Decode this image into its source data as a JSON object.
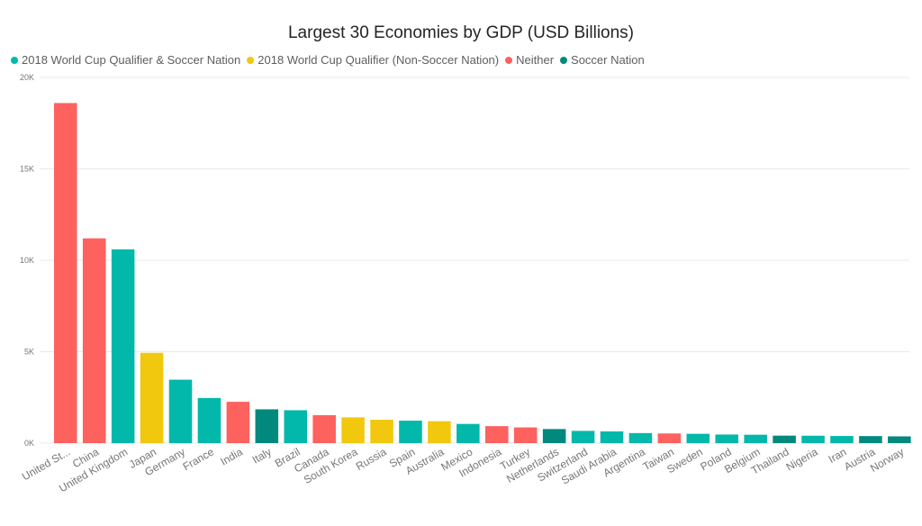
{
  "chart_data": {
    "type": "bar",
    "title": "Largest 30 Economies by GDP (USD Billions)",
    "xlabel": "",
    "ylabel": "",
    "ylim": [
      0,
      20000
    ],
    "yticks": [
      {
        "value": 0,
        "label": "0K"
      },
      {
        "value": 5000,
        "label": "5K"
      },
      {
        "value": 10000,
        "label": "10K"
      },
      {
        "value": 15000,
        "label": "15K"
      },
      {
        "value": 20000,
        "label": "20K"
      }
    ],
    "grid": true,
    "legend_position": "top-left",
    "legend": [
      {
        "name": "2018 World Cup Qualifier & Soccer Nation",
        "color": "#01B8AA"
      },
      {
        "name": "2018 World Cup Qualifier (Non-Soccer Nation)",
        "color": "#F2C80F"
      },
      {
        "name": "Neither",
        "color": "#FD625E"
      },
      {
        "name": "Soccer Nation",
        "color": "#01897E"
      }
    ],
    "categories": [
      "United St...",
      "China",
      "United Kingdom",
      "Japan",
      "Germany",
      "France",
      "India",
      "Italy",
      "Brazil",
      "Canada",
      "South Korea",
      "Russia",
      "Spain",
      "Australia",
      "Mexico",
      "Indonesia",
      "Turkey",
      "Netherlands",
      "Switzerland",
      "Saudi Arabia",
      "Argentina",
      "Taiwan",
      "Sweden",
      "Poland",
      "Belgium",
      "Thailand",
      "Nigeria",
      "Iran",
      "Austria",
      "Norway"
    ],
    "values": [
      18600,
      11200,
      10600,
      4940,
      3470,
      2470,
      2260,
      1850,
      1800,
      1530,
      1410,
      1280,
      1230,
      1200,
      1050,
      930,
      860,
      770,
      670,
      640,
      550,
      530,
      510,
      470,
      460,
      410,
      405,
      390,
      385,
      370
    ],
    "groups": [
      2,
      2,
      0,
      1,
      0,
      0,
      2,
      3,
      0,
      2,
      1,
      1,
      0,
      1,
      0,
      2,
      2,
      3,
      0,
      0,
      0,
      2,
      0,
      0,
      0,
      3,
      0,
      0,
      3,
      3
    ]
  }
}
